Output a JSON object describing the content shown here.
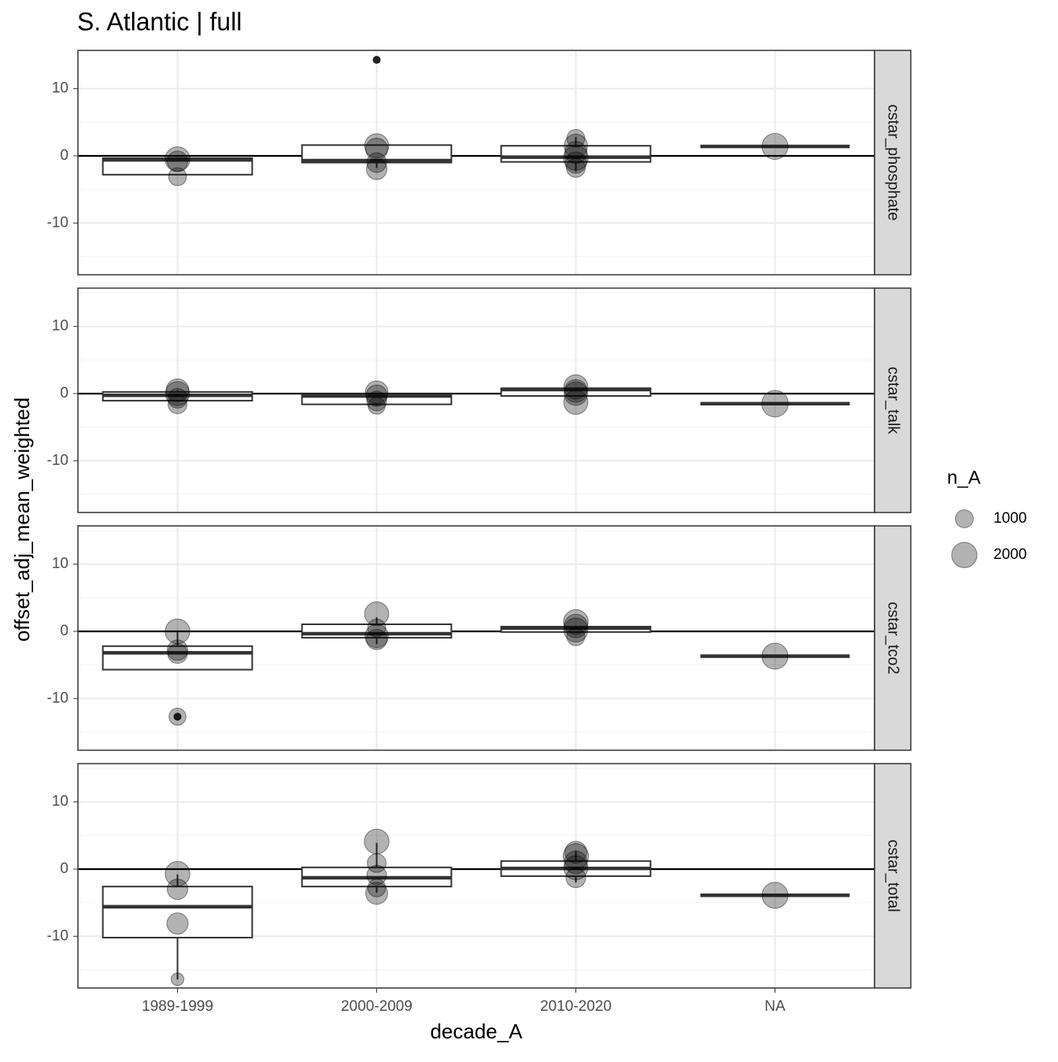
{
  "chart_data": {
    "type": "box",
    "title": "S. Atlantic | full",
    "x_label": "decade_A",
    "y_label": "offset_adj_mean_weighted",
    "categories": [
      "1989-1999",
      "2000-2009",
      "2010-2020",
      "NA"
    ],
    "ylim": [
      -17.7,
      15.7
    ],
    "yticks": [
      -10,
      0,
      10
    ],
    "minor_yticks": [
      -15,
      -5,
      5,
      15
    ],
    "hline": 0,
    "grid": true,
    "size_legend": {
      "title": "n_A",
      "values": [
        1000,
        2000
      ]
    },
    "facets": [
      {
        "strip": "cstar_phosphate",
        "boxes": [
          {
            "lower": -2.8,
            "q1": -2.8,
            "median": -0.6,
            "q3": -0.35,
            "upper": -0.35,
            "outliers": [],
            "points": [
              -0.5,
              -0.8,
              -3.1
            ],
            "n": [
              1900,
              1300,
              1000
            ]
          },
          {
            "lower": -1.8,
            "q1": -1.0,
            "median": -0.7,
            "q3": 1.6,
            "upper": 1.6,
            "outliers": [
              14.3
            ],
            "points": [
              1.5,
              1.0,
              -1.0,
              -2.0
            ],
            "n": [
              1800,
              1500,
              1200,
              1300
            ]
          },
          {
            "lower": -2.3,
            "q1": -0.9,
            "median": -0.2,
            "q3": 1.5,
            "upper": 2.8,
            "outliers": [],
            "points": [
              2.6,
              1.5,
              0.5,
              -0.3,
              -1.0,
              -1.8
            ],
            "n": [
              1000,
              1700,
              1500,
              1900,
              1400,
              1100
            ]
          },
          {
            "lower": 1.4,
            "q1": 1.4,
            "median": 1.4,
            "q3": 1.4,
            "upper": 1.4,
            "outliers": [],
            "points": [
              1.4
            ],
            "n": [
              2100
            ]
          }
        ]
      },
      {
        "strip": "cstar_talk",
        "boxes": [
          {
            "lower": -1.05,
            "q1": -1.05,
            "median": -0.25,
            "q3": 0.25,
            "upper": 0.5,
            "outliers": [],
            "points": [
              0.5,
              0,
              -0.7,
              -1.6
            ],
            "n": [
              1600,
              1800,
              1200,
              1100
            ]
          },
          {
            "lower": -1.8,
            "q1": -1.6,
            "median": -0.35,
            "q3": -0.1,
            "upper": -0.1,
            "outliers": [],
            "points": [
              0.2,
              -0.3,
              -1.1,
              -1.8
            ],
            "n": [
              1600,
              1400,
              1200,
              900
            ]
          },
          {
            "lower": -0.35,
            "q1": -0.35,
            "median": 0.6,
            "q3": 0.8,
            "upper": 0.8,
            "outliers": [],
            "points": [
              1.0,
              0.4,
              0,
              -1.3
            ],
            "n": [
              1800,
              1600,
              1700,
              1800
            ]
          },
          {
            "lower": -1.5,
            "q1": -1.5,
            "median": -1.5,
            "q3": -1.5,
            "upper": -1.5,
            "outliers": [],
            "points": [
              -1.5
            ],
            "n": [
              2200
            ]
          }
        ]
      },
      {
        "strip": "cstar_tco2",
        "boxes": [
          {
            "lower": -5.7,
            "q1": -5.7,
            "median": -3.2,
            "q3": -2.2,
            "upper": 0,
            "outliers": [
              -12.7
            ],
            "points": [
              0,
              -2.8,
              -3.3,
              -12.7
            ],
            "n": [
              1900,
              1300,
              1200,
              900
            ]
          },
          {
            "lower": -1.9,
            "q1": -0.95,
            "median": -0.35,
            "q3": 1.05,
            "upper": 2.1,
            "outliers": [],
            "points": [
              2.6,
              0.5,
              -0.7,
              -1.2
            ],
            "n": [
              1800,
              1000,
              1700,
              1300
            ]
          },
          {
            "lower": -0.1,
            "q1": -0.1,
            "median": 0.5,
            "q3": 0.7,
            "upper": 0.7,
            "outliers": [],
            "points": [
              1.4,
              0.8,
              0.2,
              -0.8
            ],
            "n": [
              1900,
              1700,
              1800,
              1000
            ]
          },
          {
            "lower": -3.7,
            "q1": -3.7,
            "median": -3.7,
            "q3": -3.7,
            "upper": -3.7,
            "outliers": [],
            "points": [
              -3.7
            ],
            "n": [
              2100
            ]
          }
        ]
      },
      {
        "strip": "cstar_total",
        "boxes": [
          {
            "lower": -16.4,
            "q1": -10.2,
            "median": -5.6,
            "q3": -2.6,
            "upper": -0.8,
            "outliers": [],
            "points": [
              -0.7,
              -3.0,
              -8.1,
              -16.4
            ],
            "n": [
              1900,
              1300,
              1400,
              500
            ]
          },
          {
            "lower": -3.5,
            "q1": -2.6,
            "median": -1.3,
            "q3": 0.25,
            "upper": 3.9,
            "outliers": [],
            "points": [
              4.1,
              0.9,
              -0.9,
              -2.8,
              -3.6
            ],
            "n": [
              1900,
              1100,
              1200,
              1000,
              1500
            ]
          },
          {
            "lower": -2.0,
            "q1": -1.05,
            "median": 0.1,
            "q3": 1.2,
            "upper": 2.7,
            "outliers": [],
            "points": [
              2.5,
              1.9,
              1.0,
              0.2,
              -1.3
            ],
            "n": [
              1500,
              2000,
              1600,
              1800,
              1200
            ]
          },
          {
            "lower": -3.9,
            "q1": -3.9,
            "median": -3.9,
            "q3": -3.9,
            "upper": -3.9,
            "outliers": [],
            "points": [
              -3.9
            ],
            "n": [
              2100
            ]
          }
        ]
      }
    ]
  }
}
